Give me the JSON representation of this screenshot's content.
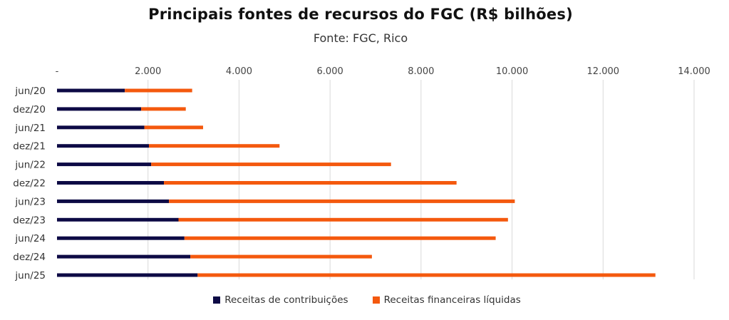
{
  "chart_data": {
    "type": "bar",
    "orientation": "horizontal",
    "stacked": true,
    "title": "Principais fontes de recursos do FGC (R$ bilhões)",
    "subtitle": "Fonte: FGC, Rico",
    "categories": [
      "jun/20",
      "dez/20",
      "jun/21",
      "dez/21",
      "jun/22",
      "dez/22",
      "jun/23",
      "dez/23",
      "jun/24",
      "dez/24",
      "jun/25"
    ],
    "series": [
      {
        "name": "Receitas de contribuições",
        "color": "#0d0a45",
        "values": [
          1490,
          1850,
          1920,
          2020,
          2070,
          2350,
          2460,
          2670,
          2800,
          2930,
          3090
        ]
      },
      {
        "name": "Receitas financeiras líquidas",
        "color": "#f4590e",
        "values": [
          1480,
          980,
          1290,
          2870,
          5270,
          6430,
          7600,
          7240,
          6840,
          3990,
          10060
        ]
      }
    ],
    "x_ticks": [
      "-",
      "2.000",
      "4.000",
      "6.000",
      "8.000",
      "10.000",
      "12.000",
      "14.000"
    ],
    "xlim": [
      0,
      14000
    ],
    "grid": "vertical",
    "legend": "bottom"
  }
}
